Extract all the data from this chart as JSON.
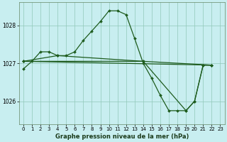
{
  "bg_color": "#c8eef0",
  "grid_color": "#90c8b8",
  "line_color": "#1e5c1e",
  "title": "Graphe pression niveau de la mer (hPa)",
  "xlim": [
    -0.5,
    23.5
  ],
  "ylim": [
    1025.4,
    1028.6
  ],
  "yticks": [
    1026,
    1027,
    1028
  ],
  "xticks": [
    0,
    1,
    2,
    3,
    4,
    5,
    6,
    7,
    8,
    9,
    10,
    11,
    12,
    13,
    14,
    15,
    16,
    17,
    18,
    19,
    20,
    21,
    22,
    23
  ],
  "series1_x": [
    0,
    1,
    2,
    3,
    4,
    5,
    6,
    7,
    8,
    9,
    10,
    11,
    12,
    13,
    14,
    15,
    16,
    17,
    18,
    19,
    20,
    21,
    22
  ],
  "series1_y": [
    1026.85,
    1027.05,
    1027.3,
    1027.3,
    1027.2,
    1027.2,
    1027.3,
    1027.6,
    1027.85,
    1028.1,
    1028.38,
    1028.38,
    1028.28,
    1027.65,
    1027.0,
    1026.6,
    1026.15,
    1025.75,
    1025.75,
    1025.75,
    1026.0,
    1026.95,
    1026.95
  ],
  "series2_x": [
    0,
    4,
    14,
    22
  ],
  "series2_y": [
    1027.05,
    1027.2,
    1027.05,
    1026.95
  ],
  "series3_x": [
    0,
    14,
    19,
    20,
    21,
    22
  ],
  "series3_y": [
    1027.05,
    1027.05,
    1025.75,
    1026.0,
    1026.95,
    1026.95
  ],
  "series4_x": [
    0,
    22
  ],
  "series4_y": [
    1027.05,
    1026.95
  ]
}
